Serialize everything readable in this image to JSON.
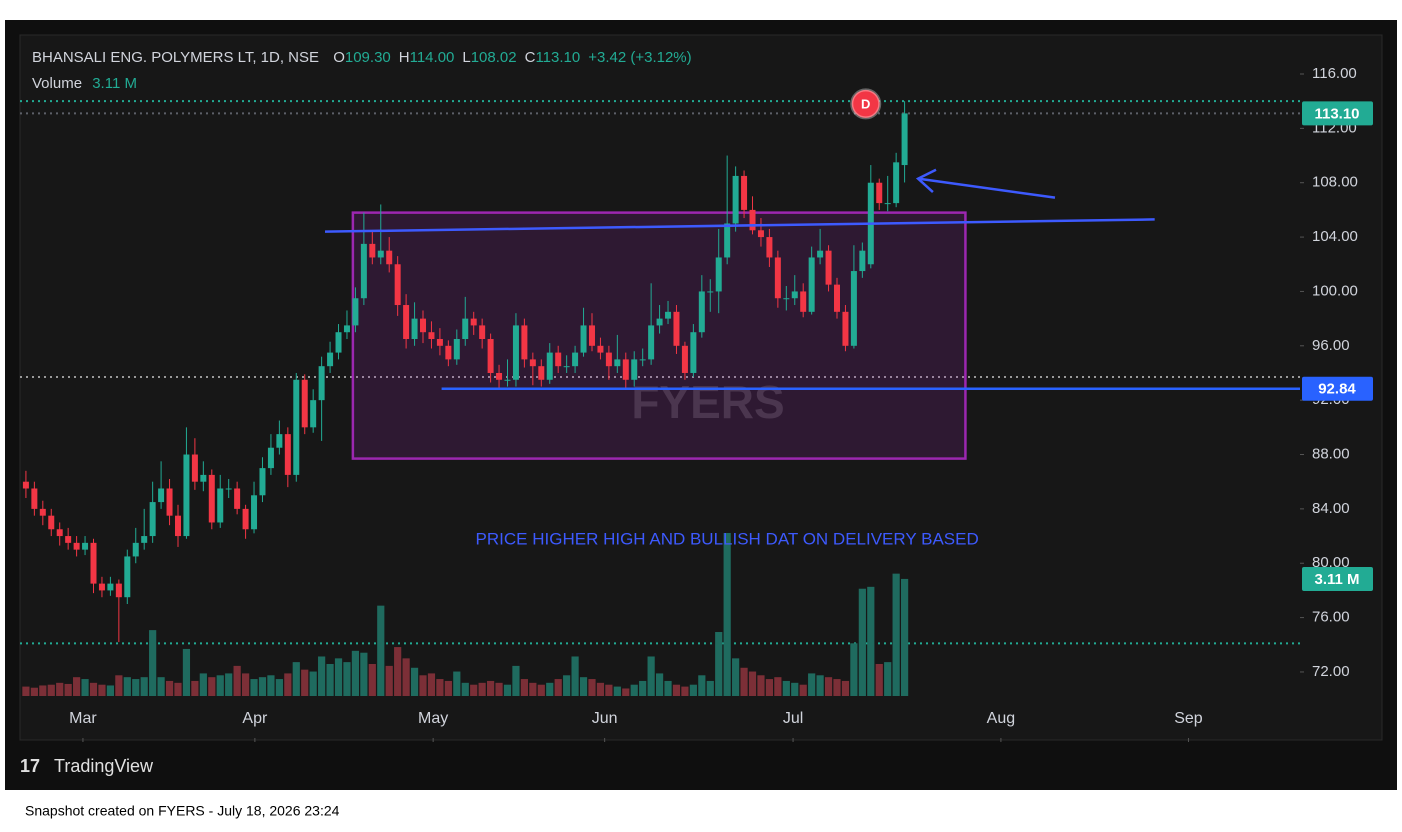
{
  "chart_data": {
    "type": "candlestick",
    "symbol": "BHANSALI ENG. POLYMERS LT, 1D, NSE",
    "legend_values": [
      {
        "key": "O",
        "value": "109.30"
      },
      {
        "key": "H",
        "value": "114.00"
      },
      {
        "key": "L",
        "value": "108.02"
      },
      {
        "key": "C",
        "value": "113.10"
      }
    ],
    "change": "+3.42 (+3.12%)",
    "volume_title": "Volume",
    "volume_value": "3.11 M",
    "up_color": "#22ab94",
    "down_color": "#f23645",
    "volume_up_color": "#1f6b5f",
    "volume_down_color": "#7c2f37",
    "ylim": [
      67.14,
      118.87
    ],
    "yticks": [
      {
        "value": 72,
        "label": "72.00"
      },
      {
        "value": 76,
        "label": "76.00"
      },
      {
        "value": 80,
        "label": "80.00"
      },
      {
        "value": 84,
        "label": "84.00"
      },
      {
        "value": 88,
        "label": "88.00"
      },
      {
        "value": 92,
        "label": "92.00"
      },
      {
        "value": 96,
        "label": "96.00"
      },
      {
        "value": 100,
        "label": "100.00"
      },
      {
        "value": 104,
        "label": "104.00"
      },
      {
        "value": 108,
        "label": "108.00"
      },
      {
        "value": 112,
        "label": "112.00"
      },
      {
        "value": 116,
        "label": "116.00"
      }
    ],
    "xlim": [
      -0.7,
      150.8
    ],
    "xticks": [
      {
        "value": 6.75,
        "label": "Mar"
      },
      {
        "value": 27.1,
        "label": "Apr"
      },
      {
        "value": 48.2,
        "label": "May"
      },
      {
        "value": 68.5,
        "label": "Jun"
      },
      {
        "value": 90.8,
        "label": "Jul"
      },
      {
        "value": 115.4,
        "label": "Aug"
      },
      {
        "value": 137.6,
        "label": "Sep"
      }
    ],
    "grid": false,
    "ohlc": [
      [
        86,
        86.8,
        84.8,
        85.5
      ],
      [
        85.5,
        86,
        83.5,
        84
      ],
      [
        84,
        84.6,
        82.8,
        83.5
      ],
      [
        83.5,
        84,
        82,
        82.5
      ],
      [
        82.5,
        83,
        81.3,
        82
      ],
      [
        82,
        82.6,
        81,
        81.5
      ],
      [
        81.5,
        82,
        80.5,
        81
      ],
      [
        81,
        82,
        80.6,
        81.5
      ],
      [
        81.5,
        81.8,
        77.8,
        78.5
      ],
      [
        78.5,
        79,
        77.5,
        78
      ],
      [
        78,
        79,
        77.6,
        78.5
      ],
      [
        78.5,
        78.8,
        74.2,
        77.5
      ],
      [
        77.5,
        81,
        77,
        80.5
      ],
      [
        80.5,
        82.6,
        80,
        81.5
      ],
      [
        81.5,
        84,
        81,
        82
      ],
      [
        82,
        86,
        81.5,
        84.5
      ],
      [
        84.5,
        87.5,
        84,
        85.5
      ],
      [
        85.5,
        86.2,
        82.8,
        83.5
      ],
      [
        83.5,
        84.3,
        81.2,
        82
      ],
      [
        82,
        90,
        81.8,
        88
      ],
      [
        88,
        89.2,
        85.4,
        86
      ],
      [
        86,
        87.5,
        85.3,
        86.5
      ],
      [
        86.5,
        86.9,
        82.5,
        83
      ],
      [
        83,
        86.5,
        82.6,
        85.5
      ],
      [
        85.5,
        86.2,
        84.8,
        85.5
      ],
      [
        85.5,
        86,
        83.6,
        84
      ],
      [
        84,
        84.3,
        81.8,
        82.5
      ],
      [
        82.5,
        86,
        82.2,
        85
      ],
      [
        85,
        87.8,
        84.5,
        87
      ],
      [
        87,
        89.5,
        86.5,
        88.5
      ],
      [
        88.5,
        90.5,
        88,
        89.5
      ],
      [
        89.5,
        90,
        85.6,
        86.5
      ],
      [
        86.5,
        94,
        86,
        93.5
      ],
      [
        93.5,
        93.9,
        89.5,
        90
      ],
      [
        90,
        92.8,
        89.6,
        92
      ],
      [
        92,
        95.2,
        89,
        94.5
      ],
      [
        94.5,
        96.3,
        94,
        95.5
      ],
      [
        95.5,
        97.6,
        95,
        97
      ],
      [
        97,
        98.6,
        96.5,
        97.5
      ],
      [
        97.5,
        100.3,
        97,
        99.5
      ],
      [
        99.5,
        105.8,
        99,
        103.5
      ],
      [
        103.5,
        104.4,
        102,
        102.5
      ],
      [
        102.5,
        106.4,
        102,
        103
      ],
      [
        103,
        104,
        101.4,
        102
      ],
      [
        102,
        102.6,
        98.2,
        99
      ],
      [
        99,
        99.8,
        95.8,
        96.5
      ],
      [
        96.5,
        99.2,
        96,
        98
      ],
      [
        98,
        98.6,
        96.2,
        97
      ],
      [
        97,
        97.8,
        95.8,
        96.5
      ],
      [
        96.5,
        97.3,
        95.3,
        96
      ],
      [
        96,
        96.4,
        94.5,
        95
      ],
      [
        95,
        97.2,
        94.6,
        96.5
      ],
      [
        96.5,
        99.6,
        96,
        98
      ],
      [
        98,
        98.5,
        96.8,
        97.5
      ],
      [
        97.5,
        98,
        95.8,
        96.5
      ],
      [
        96.5,
        96.9,
        93.3,
        94
      ],
      [
        94,
        94.6,
        92.9,
        93.5
      ],
      [
        93.5,
        95,
        93,
        93.5
      ],
      [
        93.5,
        98.4,
        93,
        97.5
      ],
      [
        97.5,
        98,
        94.4,
        95
      ],
      [
        95,
        95.5,
        93.1,
        94.5
      ],
      [
        94.5,
        95,
        93,
        93.5
      ],
      [
        93.5,
        96.2,
        93.2,
        95.5
      ],
      [
        95.5,
        96,
        94,
        94.5
      ],
      [
        94.5,
        95.3,
        94,
        94.5
      ],
      [
        94.5,
        96,
        94,
        95.5
      ],
      [
        95.5,
        98.8,
        95.2,
        97.5
      ],
      [
        97.5,
        98.4,
        95.6,
        96
      ],
      [
        96,
        96.6,
        95,
        95.5
      ],
      [
        95.5,
        96,
        93.5,
        94.5
      ],
      [
        94.5,
        96.8,
        94,
        95
      ],
      [
        95,
        95.5,
        92.8,
        93.5
      ],
      [
        93.5,
        95.6,
        93,
        95
      ],
      [
        95,
        95.8,
        94.5,
        95
      ],
      [
        95,
        100.6,
        94.6,
        97.5
      ],
      [
        97.5,
        99,
        96.9,
        98
      ],
      [
        98,
        99.3,
        97.6,
        98.5
      ],
      [
        98.5,
        99,
        95.4,
        96
      ],
      [
        96,
        96.3,
        93.5,
        94
      ],
      [
        94,
        97.6,
        93.7,
        97
      ],
      [
        97,
        101.2,
        96.6,
        100
      ],
      [
        100,
        100.9,
        98.5,
        100
      ],
      [
        100,
        104.6,
        98.4,
        102.5
      ],
      [
        102.5,
        110,
        102,
        105
      ],
      [
        105,
        109.2,
        104.4,
        108.5
      ],
      [
        108.5,
        108.9,
        105.4,
        106
      ],
      [
        106,
        107,
        104.2,
        104.5
      ],
      [
        104.5,
        105.4,
        103.3,
        104
      ],
      [
        104,
        104.6,
        101.8,
        102.5
      ],
      [
        102.5,
        103,
        98.8,
        99.5
      ],
      [
        99.5,
        100.4,
        98.6,
        99.5
      ],
      [
        99.5,
        101.2,
        99,
        100
      ],
      [
        100,
        100.6,
        98.1,
        98.5
      ],
      [
        98.5,
        103.3,
        98.3,
        102.5
      ],
      [
        102.5,
        104.6,
        102,
        103
      ],
      [
        103,
        103.4,
        100,
        100.5
      ],
      [
        100.5,
        101,
        98,
        98.5
      ],
      [
        98.5,
        99,
        95.6,
        96
      ],
      [
        96,
        103.4,
        95.8,
        101.5
      ],
      [
        101.5,
        103.6,
        101,
        103
      ],
      [
        102,
        109.3,
        101.7,
        108
      ],
      [
        108,
        108.3,
        106,
        106.5
      ],
      [
        106.5,
        108.5,
        105.9,
        106.5
      ],
      [
        106.5,
        110.2,
        106.2,
        109.5
      ],
      [
        109.3,
        114,
        108.02,
        113.1
      ]
    ],
    "volume": [
      0.25,
      0.22,
      0.28,
      0.3,
      0.35,
      0.32,
      0.5,
      0.45,
      0.35,
      0.3,
      0.28,
      0.55,
      0.5,
      0.45,
      0.5,
      1.75,
      0.5,
      0.4,
      0.35,
      1.25,
      0.4,
      0.6,
      0.5,
      0.55,
      0.6,
      0.8,
      0.6,
      0.45,
      0.5,
      0.55,
      0.45,
      0.6,
      0.9,
      0.7,
      0.65,
      1.05,
      0.85,
      1.0,
      0.9,
      1.2,
      1.15,
      0.85,
      2.4,
      0.8,
      1.3,
      1.0,
      0.75,
      0.55,
      0.6,
      0.45,
      0.4,
      0.65,
      0.35,
      0.3,
      0.35,
      0.4,
      0.35,
      0.3,
      0.8,
      0.45,
      0.35,
      0.3,
      0.35,
      0.45,
      0.55,
      1.05,
      0.5,
      0.45,
      0.35,
      0.3,
      0.25,
      0.2,
      0.3,
      0.4,
      1.05,
      0.6,
      0.4,
      0.3,
      0.25,
      0.3,
      0.55,
      0.4,
      1.7,
      4.33,
      1.0,
      0.75,
      0.65,
      0.55,
      0.45,
      0.5,
      0.4,
      0.35,
      0.3,
      0.6,
      0.55,
      0.5,
      0.45,
      0.4,
      1.4,
      2.85,
      2.9,
      0.85,
      0.9,
      3.25,
      3.11
    ],
    "reference_lines": [
      {
        "value": 114,
        "color": "#22ab94"
      },
      {
        "value": 113.1,
        "color": "#5d6068"
      },
      {
        "value": 93.7,
        "color": "#9a9a9a"
      },
      {
        "value": 74.1,
        "color": "#22ab94"
      }
    ],
    "last_price": {
      "value": 113.1,
      "label": "113.10",
      "color": "#22ab94"
    },
    "drawings": {
      "box": {
        "x": [
          38.7,
          111.2
        ],
        "y": [
          87.7,
          105.8
        ],
        "color": "#9c27b0"
      },
      "trendline": {
        "x": [
          35.4,
          133.6
        ],
        "y": [
          104.4,
          105.3
        ],
        "color": "#3d5afe"
      },
      "support": {
        "x_start": 49.2,
        "value": 92.84,
        "color": "#2962ff"
      },
      "arrow": {
        "x": [
          121.8,
          105.6
        ],
        "y": [
          106.9,
          108.3
        ],
        "color": "#3d5afe"
      },
      "note": {
        "text": "PRICE HIGHER HIGH AND BULLISH DAT ON DELIVERY BASED",
        "x": 83,
        "y": 81.7,
        "color": "#3d5afe"
      }
    },
    "event_marker": {
      "text": "D",
      "x": 99.4,
      "y": 113.8,
      "color": "#f23645"
    },
    "watermark": "FYERS",
    "brand": "TradingView",
    "footer": "Snapshot created on FYERS - July 18, 2026 23:24"
  }
}
